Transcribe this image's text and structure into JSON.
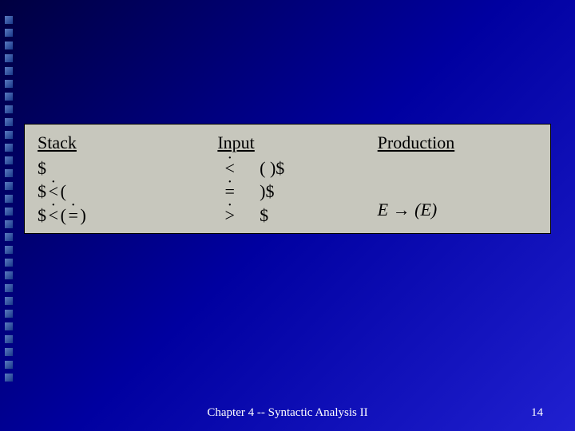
{
  "bullets": {
    "count": 29
  },
  "table": {
    "headers": {
      "stack": "Stack",
      "input": "Input",
      "production": "Production"
    },
    "rows": [
      {
        "stack_pre": "$",
        "stack_rel": "",
        "stack_post": "",
        "input_rel": "<",
        "input_sym": "( )$"
      },
      {
        "stack_pre": "$",
        "stack_rel": "<",
        "stack_post": "(",
        "input_rel": "=",
        "input_sym": ")$"
      },
      {
        "stack_pre": "$",
        "stack_rel": "<",
        "stack_post": "(",
        "stack_rel2": "=",
        "stack_post2": ")",
        "input_rel": ">",
        "input_sym": "$"
      }
    ],
    "production": {
      "lhs": "E",
      "arrow": "→",
      "rhs": "(E)"
    }
  },
  "footer": {
    "center": "Chapter 4 -- Syntactic Analysis II",
    "page": "14"
  },
  "style": {
    "block_bg": "#c7c7bd",
    "text_color": "#000000",
    "footer_color": "#ffffff",
    "font_size_pt": 22
  }
}
